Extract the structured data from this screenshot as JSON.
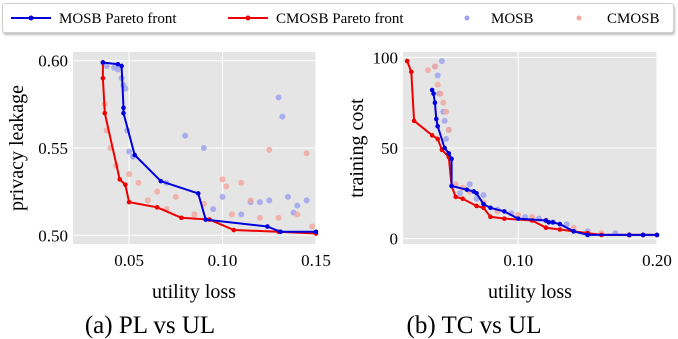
{
  "legend": {
    "entries": [
      {
        "label": "MOSB Pareto front",
        "kind": "line",
        "color": "#0000dd"
      },
      {
        "label": "CMOSB Pareto front",
        "kind": "line",
        "color": "#ee0000"
      },
      {
        "label": "MOSB",
        "kind": "dot",
        "color": "#9fa3ee"
      },
      {
        "label": "CMOSB",
        "kind": "dot",
        "color": "#f2a9a0"
      }
    ]
  },
  "colors": {
    "mosb_line": "#0000dd",
    "cmosb_line": "#ee0000",
    "mosb_dot": "#9fa3ee",
    "cmosb_dot": "#f2a9a0",
    "plot_bg": "#e5e5e5",
    "grid": "#ffffff"
  },
  "chart_data": [
    {
      "type": "scatter",
      "caption": "(a) PL vs UL",
      "xlabel": "utility loss",
      "ylabel": "privacy leakage",
      "xlim": [
        0.02,
        0.15
      ],
      "ylim": [
        0.495,
        0.605
      ],
      "xticks": [
        0.05,
        0.1,
        0.15
      ],
      "xtick_labels": [
        "0.05",
        "0.10",
        "0.15"
      ],
      "yticks": [
        0.5,
        0.55,
        0.6
      ],
      "ytick_labels": [
        "0.50",
        "0.55",
        "0.60"
      ],
      "grid": true,
      "series": [
        {
          "name": "MOSB Pareto front",
          "kind": "line",
          "x": [
            0.036,
            0.044,
            0.046,
            0.047,
            0.047,
            0.053,
            0.067,
            0.087,
            0.091,
            0.124,
            0.131,
            0.15
          ],
          "y": [
            0.599,
            0.598,
            0.597,
            0.573,
            0.57,
            0.546,
            0.531,
            0.524,
            0.509,
            0.505,
            0.502,
            0.502
          ]
        },
        {
          "name": "CMOSB Pareto front",
          "kind": "line",
          "x": [
            0.036,
            0.036,
            0.037,
            0.045,
            0.048,
            0.05,
            0.065,
            0.078,
            0.093,
            0.106,
            0.13,
            0.15
          ],
          "y": [
            0.599,
            0.59,
            0.57,
            0.532,
            0.529,
            0.519,
            0.516,
            0.51,
            0.509,
            0.503,
            0.502,
            0.501
          ]
        },
        {
          "name": "MOSB",
          "kind": "scatter",
          "x": [
            0.038,
            0.042,
            0.044,
            0.046,
            0.047,
            0.048,
            0.049,
            0.05,
            0.052,
            0.07,
            0.08,
            0.09,
            0.095,
            0.1,
            0.11,
            0.115,
            0.12,
            0.125,
            0.13,
            0.132,
            0.135,
            0.138,
            0.14,
            0.145
          ],
          "y": [
            0.597,
            0.596,
            0.595,
            0.59,
            0.586,
            0.584,
            0.56,
            0.548,
            0.545,
            0.53,
            0.557,
            0.55,
            0.515,
            0.522,
            0.512,
            0.519,
            0.519,
            0.52,
            0.579,
            0.568,
            0.522,
            0.513,
            0.517,
            0.52
          ]
        },
        {
          "name": "CMOSB",
          "kind": "scatter",
          "x": [
            0.037,
            0.038,
            0.04,
            0.043,
            0.05,
            0.055,
            0.06,
            0.065,
            0.07,
            0.075,
            0.085,
            0.09,
            0.1,
            0.102,
            0.105,
            0.11,
            0.115,
            0.12,
            0.125,
            0.13,
            0.14,
            0.145,
            0.148
          ],
          "y": [
            0.575,
            0.56,
            0.55,
            0.54,
            0.535,
            0.53,
            0.52,
            0.525,
            0.515,
            0.522,
            0.512,
            0.518,
            0.532,
            0.528,
            0.512,
            0.53,
            0.52,
            0.51,
            0.549,
            0.51,
            0.512,
            0.547,
            0.505
          ]
        }
      ]
    },
    {
      "type": "scatter",
      "caption": "(b) TC vs UL",
      "xlabel": "utility loss",
      "ylabel": "training cost",
      "xlim": [
        0.017,
        0.2
      ],
      "ylim": [
        -3,
        103
      ],
      "xticks": [
        0.1,
        0.2
      ],
      "xtick_labels": [
        "0.10",
        "0.20"
      ],
      "yticks": [
        0,
        50,
        100
      ],
      "ytick_labels": [
        "0",
        "50",
        "100"
      ],
      "grid": true,
      "series": [
        {
          "name": "MOSB Pareto front",
          "kind": "line",
          "x": [
            0.038,
            0.039,
            0.04,
            0.041,
            0.042,
            0.047,
            0.05,
            0.052,
            0.052,
            0.063,
            0.068,
            0.07,
            0.075,
            0.08,
            0.09,
            0.1,
            0.12,
            0.122,
            0.125,
            0.13,
            0.14,
            0.15,
            0.18,
            0.19,
            0.2
          ],
          "y": [
            82,
            80,
            75,
            66,
            62,
            50,
            47,
            44,
            29,
            27,
            26,
            25,
            19,
            17,
            15,
            11,
            10,
            9,
            9,
            8,
            4,
            2,
            2,
            2,
            2
          ]
        },
        {
          "name": "CMOSB Pareto front",
          "kind": "line",
          "x": [
            0.02,
            0.023,
            0.025,
            0.038,
            0.042,
            0.045,
            0.05,
            0.052,
            0.055,
            0.06,
            0.07,
            0.075,
            0.08,
            0.09,
            0.11,
            0.12,
            0.13,
            0.15,
            0.16,
            0.18,
            0.19,
            0.2
          ],
          "y": [
            98,
            92,
            65,
            57,
            55,
            49,
            45,
            29,
            23,
            22,
            18,
            17,
            12,
            11,
            10,
            6,
            5,
            3,
            2,
            2,
            2,
            2
          ]
        },
        {
          "name": "MOSB",
          "kind": "scatter",
          "x": [
            0.04,
            0.042,
            0.043,
            0.045,
            0.046,
            0.047,
            0.048,
            0.05,
            0.058,
            0.065,
            0.07,
            0.075,
            0.085,
            0.095,
            0.105,
            0.115,
            0.125,
            0.135,
            0.15,
            0.17
          ],
          "y": [
            95,
            90,
            80,
            98,
            70,
            65,
            55,
            60,
            25,
            30,
            22,
            24,
            16,
            14,
            12,
            11,
            9,
            8,
            4,
            3
          ]
        },
        {
          "name": "CMOSB",
          "kind": "scatter",
          "x": [
            0.035,
            0.04,
            0.042,
            0.044,
            0.046,
            0.048,
            0.05,
            0.055,
            0.06,
            0.065,
            0.075,
            0.085,
            0.1,
            0.11,
            0.12,
            0.14,
            0.16,
            0.18
          ],
          "y": [
            93,
            95,
            85,
            80,
            75,
            70,
            60,
            30,
            28,
            26,
            20,
            15,
            13,
            12,
            10,
            6,
            3,
            2
          ]
        }
      ]
    }
  ]
}
